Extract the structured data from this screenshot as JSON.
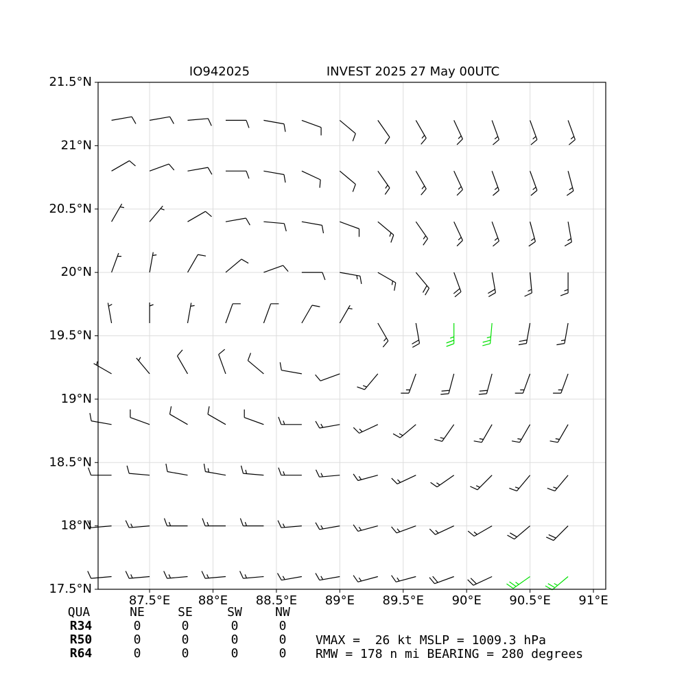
{
  "chart_data": {
    "type": "barbs",
    "title": "INVEST 2025 27 May 00UTC",
    "storm_id": "IO942025",
    "xlim": [
      87.094,
      91.097
    ],
    "ylim": [
      17.5,
      21.5
    ],
    "xticks": [
      {
        "value": 87.5,
        "label": "87.5°E"
      },
      {
        "value": 88,
        "label": "88°E"
      },
      {
        "value": 88.5,
        "label": "88.5°E"
      },
      {
        "value": 89,
        "label": "89°E"
      },
      {
        "value": 89.5,
        "label": "89.5°E"
      },
      {
        "value": 90,
        "label": "90°E"
      },
      {
        "value": 90.5,
        "label": "90.5°E"
      },
      {
        "value": 91,
        "label": "91°E"
      }
    ],
    "yticks": [
      {
        "value": 17.5,
        "label": "17.5°N"
      },
      {
        "value": 18,
        "label": "18°N"
      },
      {
        "value": 18.5,
        "label": "18.5°N"
      },
      {
        "value": 19,
        "label": "19°N"
      },
      {
        "value": 19.5,
        "label": "19.5°N"
      },
      {
        "value": 20,
        "label": "20°N"
      },
      {
        "value": 20.5,
        "label": "20.5°N"
      },
      {
        "value": 21,
        "label": "21°N"
      },
      {
        "value": 21.5,
        "label": "21.5°N"
      }
    ],
    "grid": true,
    "lon": [
      87.2,
      87.5,
      87.8,
      88.1,
      88.4,
      88.7,
      89.0,
      89.3,
      89.6,
      89.9,
      90.2,
      90.5,
      90.8
    ],
    "lat": [
      17.6,
      18.0,
      18.4,
      18.8,
      19.2,
      19.6,
      20.0,
      20.4,
      20.8,
      21.2
    ],
    "direction": [
      [
        265,
        265,
        265,
        265,
        265,
        260,
        260,
        255,
        255,
        250,
        245,
        235,
        230
      ],
      [
        265,
        265,
        270,
        270,
        270,
        265,
        260,
        255,
        250,
        245,
        240,
        230,
        225
      ],
      [
        270,
        275,
        280,
        280,
        275,
        270,
        265,
        255,
        245,
        235,
        225,
        220,
        220
      ],
      [
        280,
        290,
        300,
        300,
        290,
        270,
        260,
        245,
        230,
        215,
        210,
        210,
        210
      ],
      [
        300,
        320,
        330,
        340,
        310,
        280,
        250,
        220,
        200,
        195,
        195,
        200,
        200
      ],
      [
        350,
        0,
        10,
        20,
        20,
        30,
        30,
        150,
        170,
        180,
        185,
        190,
        190
      ],
      [
        20,
        10,
        30,
        50,
        70,
        90,
        100,
        120,
        140,
        160,
        170,
        175,
        180
      ],
      [
        30,
        40,
        60,
        80,
        95,
        100,
        110,
        130,
        145,
        155,
        160,
        165,
        170
      ],
      [
        60,
        70,
        80,
        90,
        100,
        115,
        130,
        145,
        150,
        155,
        160,
        160,
        165
      ],
      [
        80,
        80,
        85,
        90,
        100,
        110,
        130,
        145,
        150,
        155,
        160,
        160,
        160
      ]
    ],
    "speed": [
      [
        14,
        15,
        15,
        16,
        16,
        17,
        17,
        18,
        18,
        20,
        22,
        26,
        26
      ],
      [
        14,
        15,
        15,
        16,
        16,
        17,
        17,
        17,
        18,
        18,
        19,
        22,
        24
      ],
      [
        12,
        13,
        14,
        15,
        15,
        16,
        16,
        16,
        17,
        17,
        17,
        18,
        19
      ],
      [
        10,
        11,
        12,
        13,
        14,
        15,
        15,
        15,
        16,
        16,
        17,
        17,
        17
      ],
      [
        8,
        9,
        10,
        11,
        12,
        12,
        13,
        15,
        18,
        21,
        22,
        18,
        16
      ],
      [
        6,
        7,
        8,
        10,
        12,
        12,
        5,
        15,
        22,
        26,
        26,
        20,
        16
      ],
      [
        6,
        8,
        10,
        12,
        13,
        14,
        15,
        16,
        20,
        24,
        22,
        18,
        16
      ],
      [
        8,
        9,
        10,
        11,
        12,
        13,
        14,
        15,
        17,
        18,
        17,
        16,
        15
      ],
      [
        10,
        11,
        12,
        12,
        12,
        13,
        14,
        15,
        15,
        15,
        15,
        15,
        15
      ],
      [
        12,
        12,
        13,
        13,
        13,
        14,
        14,
        14,
        15,
        15,
        15,
        15,
        15
      ]
    ],
    "levels": [
      {
        "min": 0,
        "color": "#000000"
      },
      {
        "min": 25,
        "color": "#00e000"
      }
    ]
  },
  "radii": {
    "header": [
      "QUA",
      "NE",
      "SE",
      "SW",
      "NW"
    ],
    "rows": [
      {
        "label": "R34",
        "values": [
          0,
          0,
          0,
          0
        ]
      },
      {
        "label": "R50",
        "values": [
          0,
          0,
          0,
          0
        ]
      },
      {
        "label": "R64",
        "values": [
          0,
          0,
          0,
          0
        ]
      }
    ]
  },
  "stats": [
    "VMAX =  26 kt MSLP = 1009.3 hPa",
    "RMW = 178 n mi BEARING = 280 degrees"
  ]
}
